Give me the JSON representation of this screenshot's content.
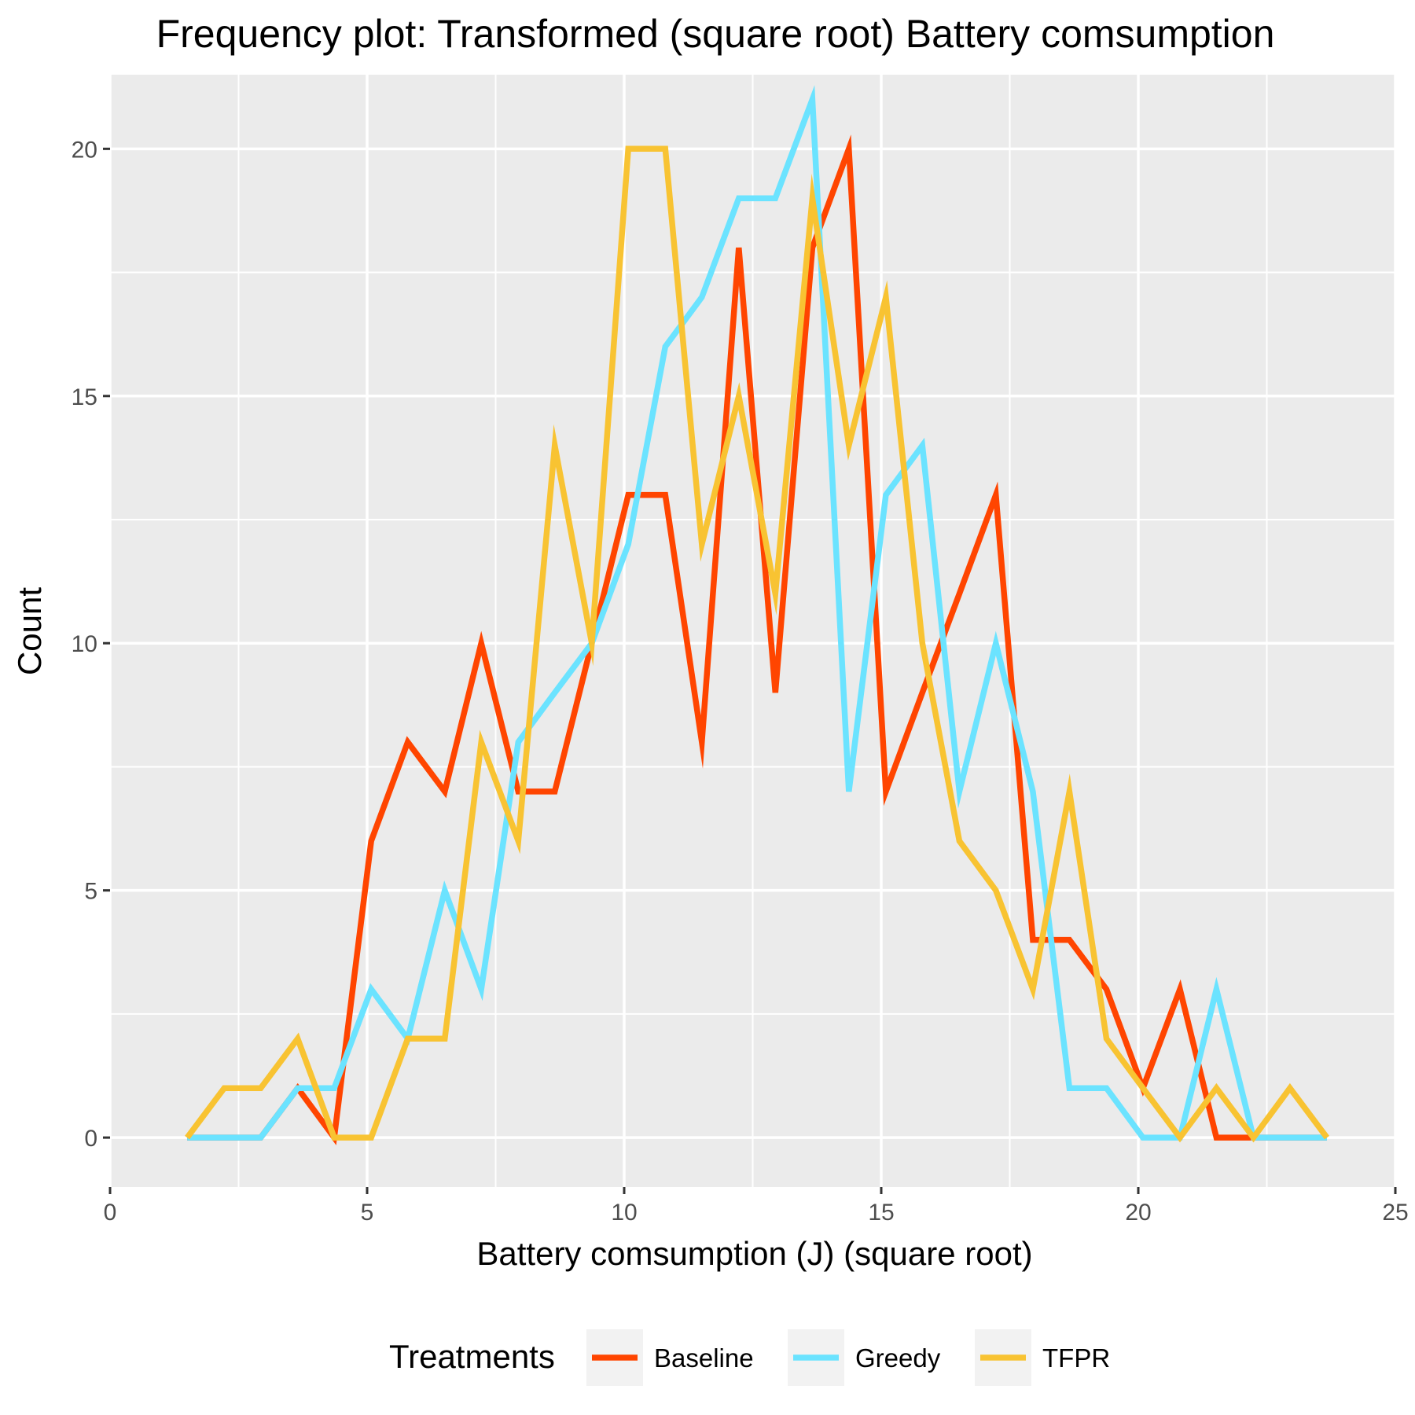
{
  "chart_data": {
    "type": "line",
    "title": "Frequency plot: Transformed (square root) Battery comsumption",
    "xlabel": "Battery comsumption (J) (square root)",
    "ylabel": "Count",
    "xlim": [
      0,
      25
    ],
    "ylim": [
      -1,
      21.5
    ],
    "x_ticks": [
      0,
      5,
      10,
      15,
      20,
      25
    ],
    "x_tick_labels": [
      "0",
      "5",
      "10",
      "15",
      "20",
      "25"
    ],
    "y_ticks": [
      0,
      5,
      10,
      15,
      20
    ],
    "y_tick_labels": [
      "0",
      "5",
      "10",
      "15",
      "20"
    ],
    "grid": true,
    "legend_title": "Treatments",
    "legend_position": "bottom",
    "x": [
      1.5,
      2.22,
      2.93,
      3.65,
      4.36,
      5.08,
      5.79,
      6.51,
      7.22,
      7.94,
      8.65,
      9.37,
      10.08,
      10.8,
      11.51,
      12.23,
      12.94,
      13.66,
      14.37,
      15.09,
      15.8,
      16.52,
      17.23,
      17.95,
      18.66,
      19.38,
      20.09,
      20.81,
      21.52,
      22.24,
      22.95,
      23.67
    ],
    "series": [
      {
        "name": "Baseline",
        "color": "#FF4500",
        "values": [
          0,
          0,
          0,
          1,
          0,
          6,
          8,
          7,
          10,
          7,
          7,
          10,
          13,
          13,
          8,
          18,
          9,
          18,
          20,
          7,
          9,
          11,
          13,
          4,
          4,
          3,
          1,
          3,
          0,
          0,
          0,
          0
        ]
      },
      {
        "name": "Greedy",
        "color": "#6BE3FF",
        "values": [
          0,
          0,
          0,
          1,
          1,
          3,
          2,
          5,
          3,
          8,
          9,
          10,
          12,
          16,
          17,
          19,
          19,
          21,
          7,
          13,
          14,
          7,
          10,
          7,
          1,
          1,
          0,
          0,
          3,
          0,
          0,
          0
        ]
      },
      {
        "name": "TFPR",
        "color": "#F8C332",
        "values": [
          0,
          1,
          1,
          2,
          0,
          0,
          2,
          2,
          8,
          6,
          14,
          10,
          20,
          20,
          12,
          15,
          11,
          19,
          14,
          17,
          10,
          6,
          5,
          3,
          7,
          2,
          1,
          0,
          1,
          0,
          1,
          0
        ]
      }
    ]
  }
}
